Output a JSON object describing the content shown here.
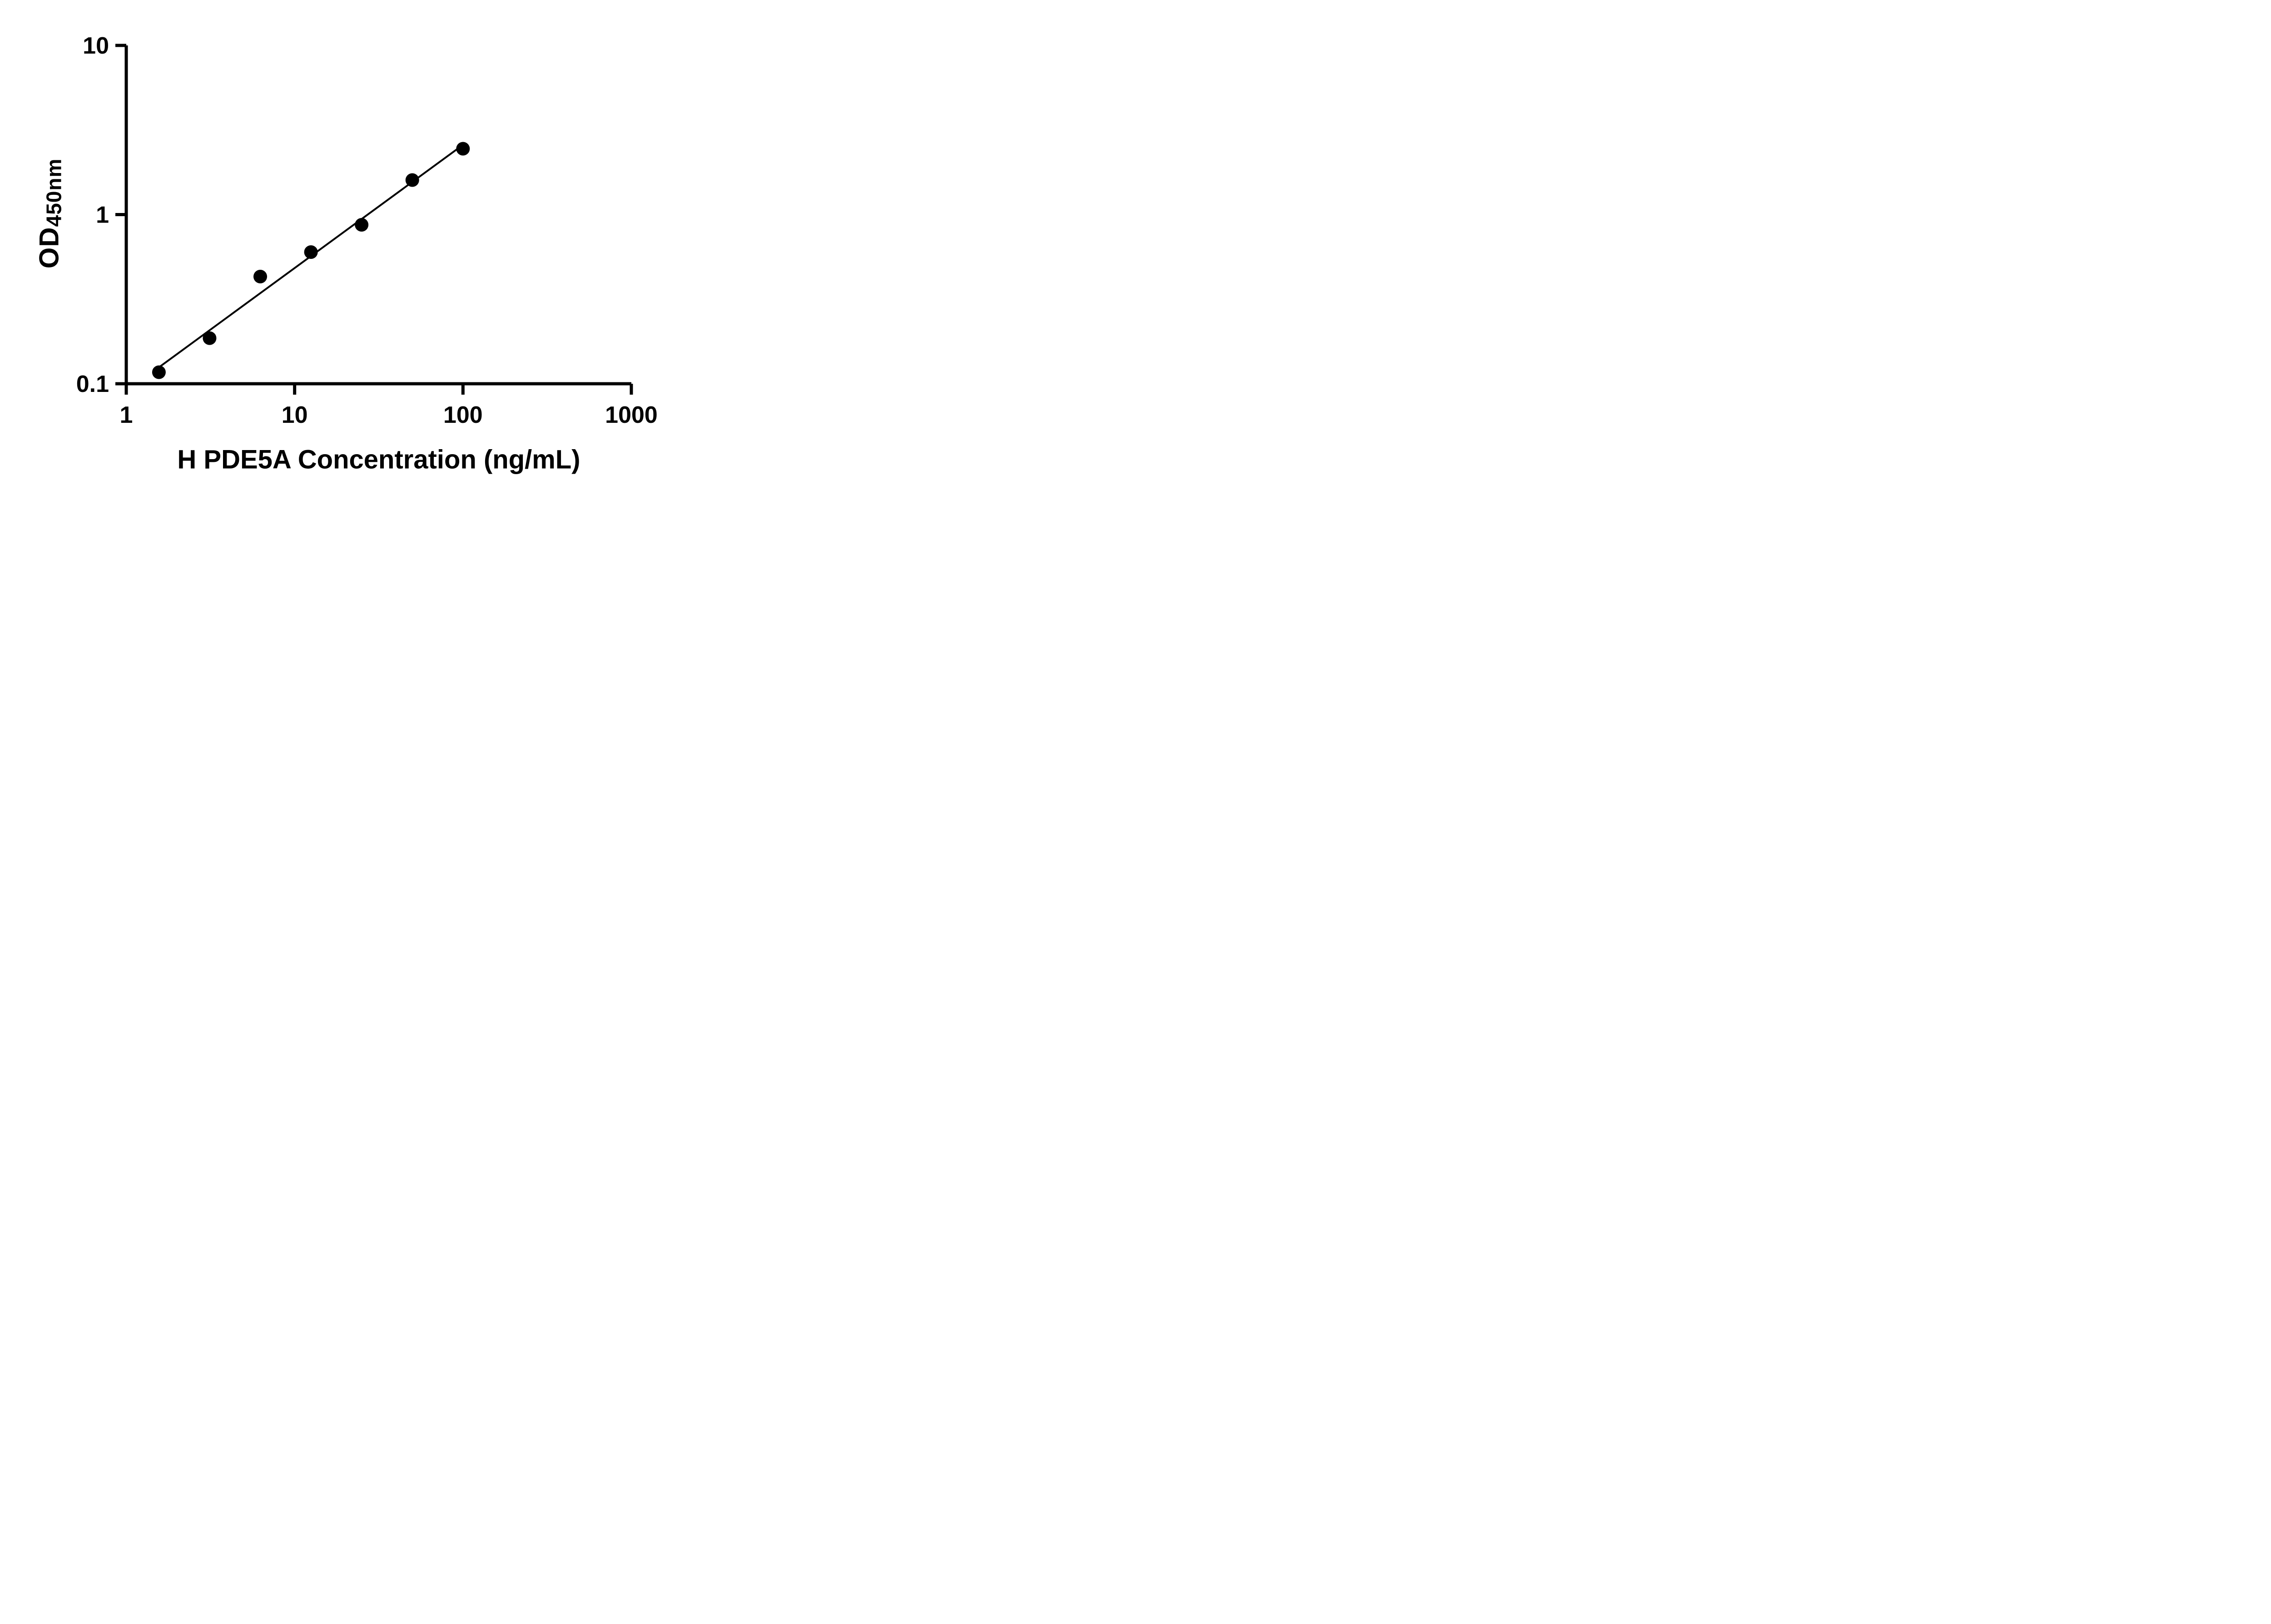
{
  "chart_data": {
    "type": "scatter",
    "title": "",
    "xlabel": "H PDE5A Concentration (ng/mL)",
    "ylabel_main": "OD",
    "ylabel_sub": "450nm",
    "x_scale": "log",
    "y_scale": "log",
    "xlim": [
      1,
      1000
    ],
    "ylim": [
      0.1,
      10
    ],
    "x_tick_values": [
      1,
      10,
      100,
      1000
    ],
    "x_tick_labels": [
      "1",
      "10",
      "100",
      "1000"
    ],
    "y_tick_values": [
      0.1,
      1,
      10
    ],
    "y_tick_labels": [
      "0.1",
      "1",
      "10"
    ],
    "x": [
      1.563,
      3.125,
      6.25,
      12.5,
      25,
      50,
      100
    ],
    "y": [
      0.117,
      0.186,
      0.43,
      0.6,
      0.87,
      1.6,
      2.45
    ],
    "trend_line": true,
    "grid": false,
    "legend": null,
    "marker_color": "#000000",
    "line_color": "#000000",
    "axis_color": "#000000",
    "marker_radius": 15,
    "line_width": 4,
    "axis_width": 7,
    "tick_length": 24,
    "tick_font_size": 52
  }
}
